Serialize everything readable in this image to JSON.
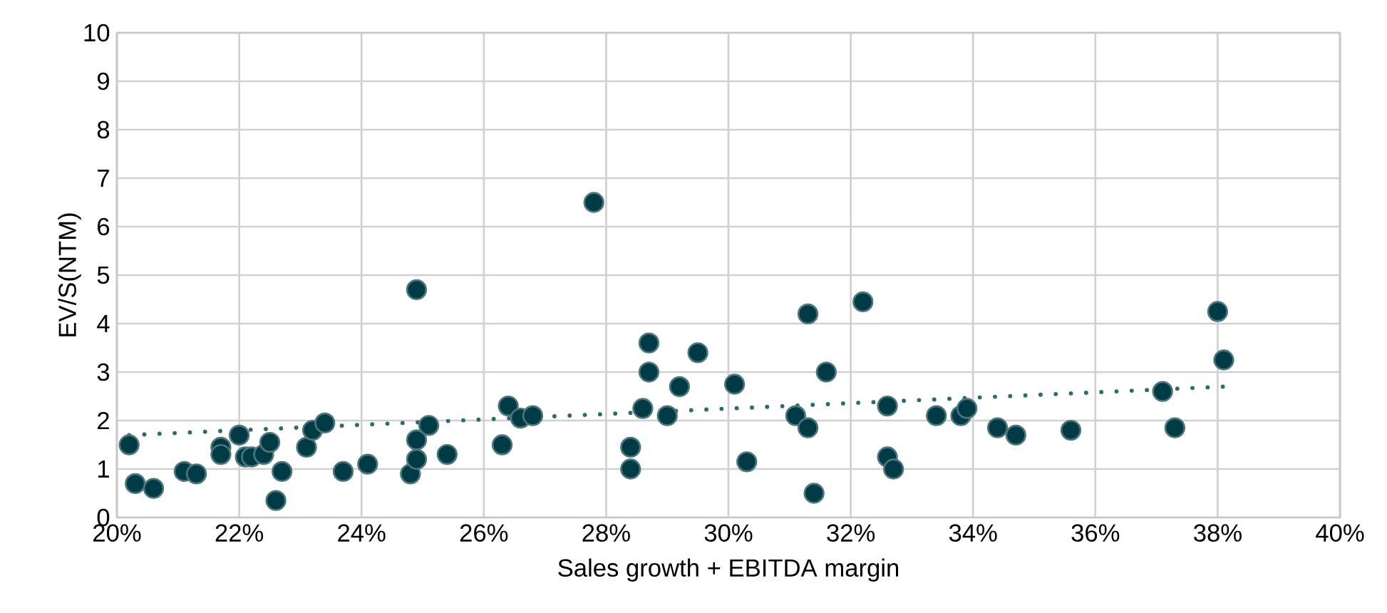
{
  "chart_data": {
    "type": "scatter",
    "xlabel": "Sales growth + EBITDA margin",
    "ylabel": "EV/S(NTM)",
    "xlim": [
      20,
      40
    ],
    "ylim": [
      0,
      10
    ],
    "xticks": [
      {
        "value": 20,
        "label": "20%"
      },
      {
        "value": 22,
        "label": "22%"
      },
      {
        "value": 24,
        "label": "24%"
      },
      {
        "value": 26,
        "label": "26%"
      },
      {
        "value": 28,
        "label": "28%"
      },
      {
        "value": 30,
        "label": "30%"
      },
      {
        "value": 32,
        "label": "32%"
      },
      {
        "value": 34,
        "label": "34%"
      },
      {
        "value": 36,
        "label": "36%"
      },
      {
        "value": 38,
        "label": "38%"
      },
      {
        "value": 40,
        "label": "40%"
      }
    ],
    "yticks": [
      0,
      1,
      2,
      3,
      4,
      5,
      6,
      7,
      8,
      9,
      10
    ],
    "grid": true,
    "series": [
      {
        "marker": "circle",
        "color": "#003a44",
        "x": [
          20.2,
          20.3,
          20.6,
          21.1,
          21.3,
          21.7,
          21.7,
          22.0,
          22.1,
          22.2,
          22.4,
          22.5,
          22.6,
          22.7,
          23.1,
          23.2,
          23.4,
          23.7,
          24.1,
          24.8,
          24.9,
          24.9,
          24.9,
          25.1,
          25.4,
          26.3,
          26.4,
          26.6,
          26.8,
          27.8,
          28.4,
          28.4,
          28.6,
          28.7,
          28.7,
          29.0,
          29.2,
          29.5,
          30.1,
          30.3,
          31.1,
          31.3,
          31.3,
          31.4,
          31.6,
          32.2,
          32.6,
          32.6,
          32.7,
          33.4,
          33.8,
          33.9,
          34.4,
          34.7,
          35.6,
          37.1,
          37.3,
          38.0,
          38.1
        ],
        "values": [
          1.5,
          0.7,
          0.6,
          0.95,
          0.9,
          1.45,
          1.3,
          1.7,
          1.25,
          1.25,
          1.3,
          1.55,
          0.35,
          0.95,
          1.45,
          1.8,
          1.95,
          0.95,
          1.1,
          0.9,
          4.7,
          1.6,
          1.2,
          1.9,
          1.3,
          1.5,
          2.3,
          2.05,
          2.1,
          6.5,
          1.0,
          1.45,
          2.25,
          3.6,
          3.0,
          2.1,
          2.7,
          3.4,
          2.75,
          1.15,
          2.1,
          1.85,
          4.2,
          0.5,
          3.0,
          4.45,
          2.3,
          1.25,
          1.0,
          2.1,
          2.1,
          2.25,
          1.85,
          1.7,
          1.8,
          2.6,
          1.85,
          4.25,
          3.25
        ]
      },
      {
        "type": "line",
        "marker": "none",
        "line_style": "dotted",
        "color": "#2f6a6f",
        "x": [
          20.2,
          38.1
        ],
        "values": [
          1.7,
          2.7
        ]
      }
    ]
  }
}
